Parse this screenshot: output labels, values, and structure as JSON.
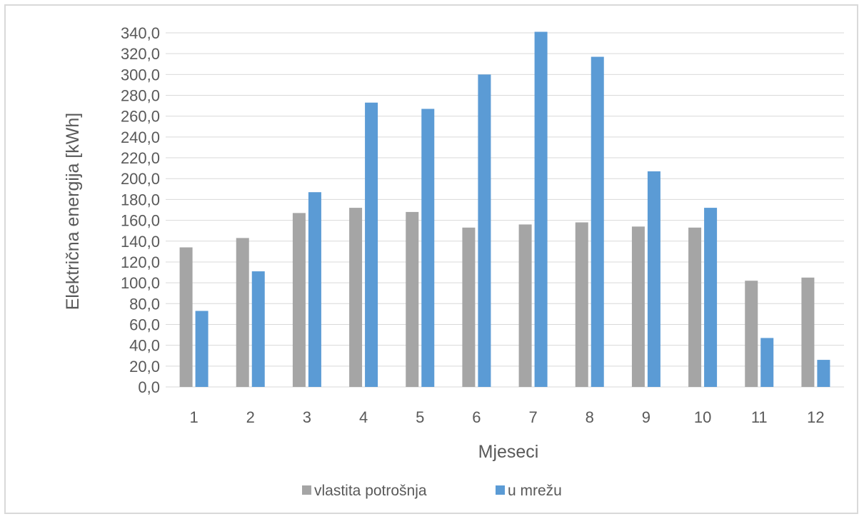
{
  "chart_data": {
    "type": "bar",
    "title": "",
    "xlabel": "Mjeseci",
    "ylabel": "Električna energija [kWh]",
    "ylim": [
      0,
      340
    ],
    "ytick_step": 20,
    "ytick_labels": [
      "0,0",
      "20,0",
      "40,0",
      "60,0",
      "80,0",
      "100,0",
      "120,0",
      "140,0",
      "160,0",
      "180,0",
      "200,0",
      "220,0",
      "240,0",
      "260,0",
      "280,0",
      "300,0",
      "320,0",
      "340,0"
    ],
    "categories": [
      "1",
      "2",
      "3",
      "4",
      "5",
      "6",
      "7",
      "8",
      "9",
      "10",
      "11",
      "12"
    ],
    "series": [
      {
        "name": "vlastita potrošnja",
        "color": "#a5a5a5",
        "values": [
          134,
          143,
          167,
          172,
          168,
          153,
          156,
          158,
          154,
          153,
          102,
          105
        ]
      },
      {
        "name": "u mrežu",
        "color": "#5b9bd5",
        "values": [
          73,
          111,
          187,
          273,
          267,
          300,
          341,
          317,
          207,
          172,
          47,
          26
        ]
      }
    ],
    "grid": true,
    "gridline_color": "#d9d9d9",
    "legend_position": "bottom"
  }
}
